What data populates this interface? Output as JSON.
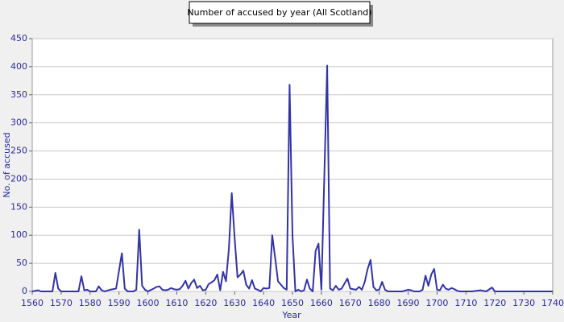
{
  "chart_data": {
    "type": "line",
    "title": "Number of accused by year (All Scotland)",
    "x_label": "Year",
    "y_label": "No. of accused",
    "x": [
      1560,
      1562,
      1563,
      1567,
      1568,
      1569,
      1570,
      1576,
      1577,
      1578,
      1579,
      1580,
      1582,
      1583,
      1584,
      1585,
      1587,
      1589,
      1591,
      1592,
      1593,
      1595,
      1596,
      1597,
      1598,
      1599,
      1600,
      1602,
      1603,
      1604,
      1605,
      1606,
      1607,
      1608,
      1609,
      1610,
      1611,
      1612,
      1613,
      1614,
      1615,
      1616,
      1617,
      1618,
      1619,
      1620,
      1621,
      1622,
      1623,
      1624,
      1625,
      1626,
      1627,
      1628,
      1629,
      1630,
      1631,
      1632,
      1633,
      1634,
      1635,
      1636,
      1637,
      1638,
      1639,
      1640,
      1641,
      1642,
      1643,
      1644,
      1645,
      1646,
      1647,
      1648,
      1649,
      1650,
      1651,
      1652,
      1653,
      1654,
      1655,
      1656,
      1657,
      1658,
      1659,
      1660,
      1662,
      1663,
      1664,
      1665,
      1666,
      1667,
      1668,
      1669,
      1670,
      1671,
      1672,
      1673,
      1674,
      1675,
      1676,
      1677,
      1678,
      1679,
      1680,
      1681,
      1682,
      1683,
      1688,
      1690,
      1691,
      1692,
      1694,
      1695,
      1696,
      1697,
      1698,
      1699,
      1700,
      1701,
      1702,
      1703,
      1704,
      1705,
      1706,
      1707,
      1708,
      1712,
      1715,
      1717,
      1719,
      1720,
      1740
    ],
    "values": [
      0,
      2,
      0,
      0,
      33,
      5,
      0,
      0,
      27,
      2,
      3,
      0,
      0,
      9,
      2,
      0,
      3,
      5,
      68,
      5,
      0,
      0,
      3,
      110,
      10,
      3,
      0,
      5,
      8,
      9,
      3,
      2,
      3,
      6,
      4,
      3,
      4,
      10,
      19,
      5,
      15,
      21,
      6,
      10,
      2,
      3,
      13,
      16,
      20,
      30,
      2,
      35,
      18,
      75,
      175,
      95,
      25,
      30,
      37,
      12,
      5,
      20,
      5,
      3,
      0,
      6,
      5,
      6,
      100,
      60,
      18,
      12,
      6,
      3,
      368,
      100,
      0,
      3,
      0,
      2,
      21,
      5,
      0,
      72,
      85,
      3,
      402,
      5,
      2,
      10,
      3,
      5,
      14,
      23,
      5,
      4,
      3,
      8,
      3,
      17,
      40,
      56,
      8,
      2,
      3,
      17,
      3,
      0,
      0,
      3,
      2,
      0,
      0,
      3,
      28,
      10,
      30,
      40,
      3,
      2,
      12,
      5,
      3,
      6,
      4,
      1,
      0,
      0,
      2,
      0,
      7,
      0,
      0
    ],
    "color": "#3333aa",
    "xlim": [
      1560,
      1740
    ],
    "xticks": [
      1560,
      1570,
      1580,
      1590,
      1600,
      1610,
      1620,
      1630,
      1640,
      1650,
      1660,
      1670,
      1680,
      1690,
      1700,
      1710,
      1720,
      1730,
      1740
    ],
    "ylim": [
      0,
      450
    ],
    "yticks": [
      0,
      50,
      100,
      150,
      200,
      250,
      300,
      350,
      400,
      450
    ],
    "grid": true
  }
}
